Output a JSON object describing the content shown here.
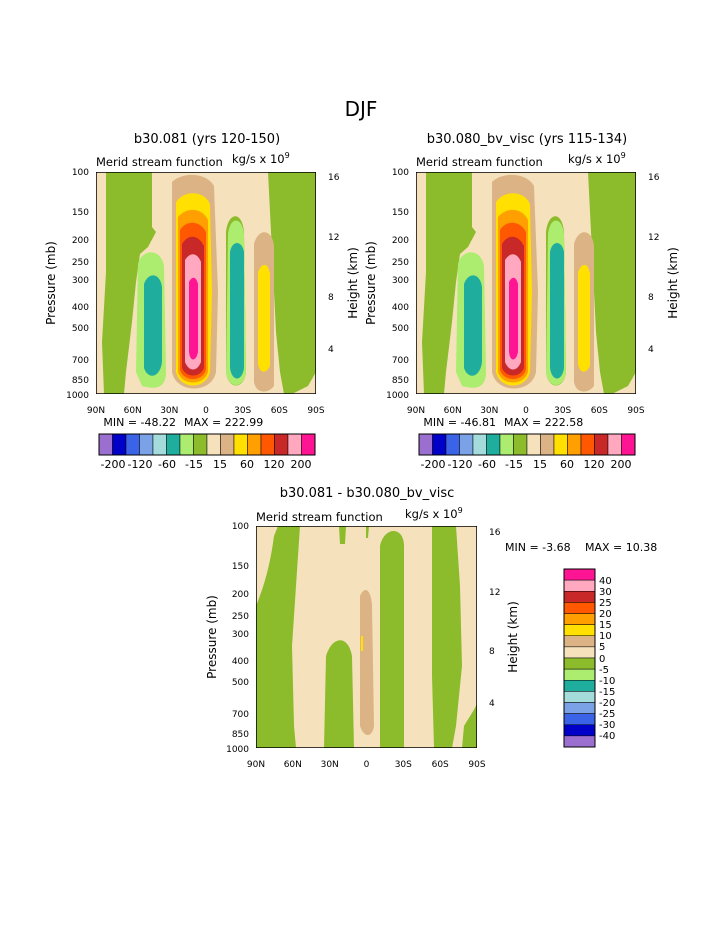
{
  "figure_title": "DJF",
  "colors": {
    "levels": [
      "#9b6fd0",
      "#0000c8",
      "#3a63e8",
      "#7ba2e6",
      "#a4dcdc",
      "#1fae9e",
      "#acec6e",
      "#8cbc2c",
      "#f5e2bc",
      "#dcb384",
      "#ffe000",
      "#ffa000",
      "#ff5800",
      "#c82828",
      "#ffa8c0",
      "#ff1493"
    ],
    "frame": "#000000"
  },
  "chart_data": [
    {
      "id": "left",
      "type": "contour",
      "title": "b30.081 (yrs 120-150)",
      "subtitle": "Merid stream function",
      "units": "kg/s x 10",
      "units_exp": "9",
      "ylabel": "Pressure (mb)",
      "y2label": "Height (km)",
      "xticks": [
        "90N",
        "60N",
        "30N",
        "0",
        "30S",
        "60S",
        "90S"
      ],
      "pticks": [
        "100",
        "150",
        "200",
        "250",
        "300",
        "400",
        "500",
        "700",
        "850",
        "1000"
      ],
      "hticks": [
        "16",
        "12",
        "8",
        "4"
      ],
      "min_label": "MIN = -48.22",
      "max_label": "MAX = 222.99",
      "min": -48.22,
      "max": 222.99,
      "cbar_labels": [
        "-200",
        "-120",
        "-60",
        "-15",
        "15",
        "60",
        "120",
        "200"
      ]
    },
    {
      "id": "right",
      "type": "contour",
      "title": "b30.080_bv_visc (yrs 115-134)",
      "subtitle": "Merid stream function",
      "units": "kg/s x 10",
      "units_exp": "9",
      "ylabel": "Pressure (mb)",
      "y2label": "Height (km)",
      "xticks": [
        "90N",
        "60N",
        "30N",
        "0",
        "30S",
        "60S",
        "90S"
      ],
      "pticks": [
        "100",
        "150",
        "200",
        "250",
        "300",
        "400",
        "500",
        "700",
        "850",
        "1000"
      ],
      "hticks": [
        "16",
        "12",
        "8",
        "4"
      ],
      "min_label": "MIN = -46.81",
      "max_label": "MAX = 222.58",
      "min": -46.81,
      "max": 222.58,
      "cbar_labels": [
        "-200",
        "-120",
        "-60",
        "-15",
        "15",
        "60",
        "120",
        "200"
      ]
    },
    {
      "id": "diff",
      "type": "contour",
      "title": "b30.081 - b30.080_bv_visc",
      "subtitle": "Merid stream function",
      "units": "kg/s x 10",
      "units_exp": "9",
      "ylabel": "Pressure (mb)",
      "y2label": "Height (km)",
      "xticks": [
        "90N",
        "60N",
        "30N",
        "0",
        "30S",
        "60S",
        "90S"
      ],
      "pticks": [
        "100",
        "150",
        "200",
        "250",
        "300",
        "400",
        "500",
        "700",
        "850",
        "1000"
      ],
      "hticks": [
        "16",
        "12",
        "8",
        "4"
      ],
      "min_label": "MIN = -3.68",
      "max_label": "MAX = 10.38",
      "min": -3.68,
      "max": 10.38,
      "cbar_labels": [
        "40",
        "30",
        "25",
        "20",
        "15",
        "10",
        "5",
        "0",
        "-5",
        "-10",
        "-15",
        "-20",
        "-25",
        "-30",
        "-40"
      ]
    }
  ]
}
